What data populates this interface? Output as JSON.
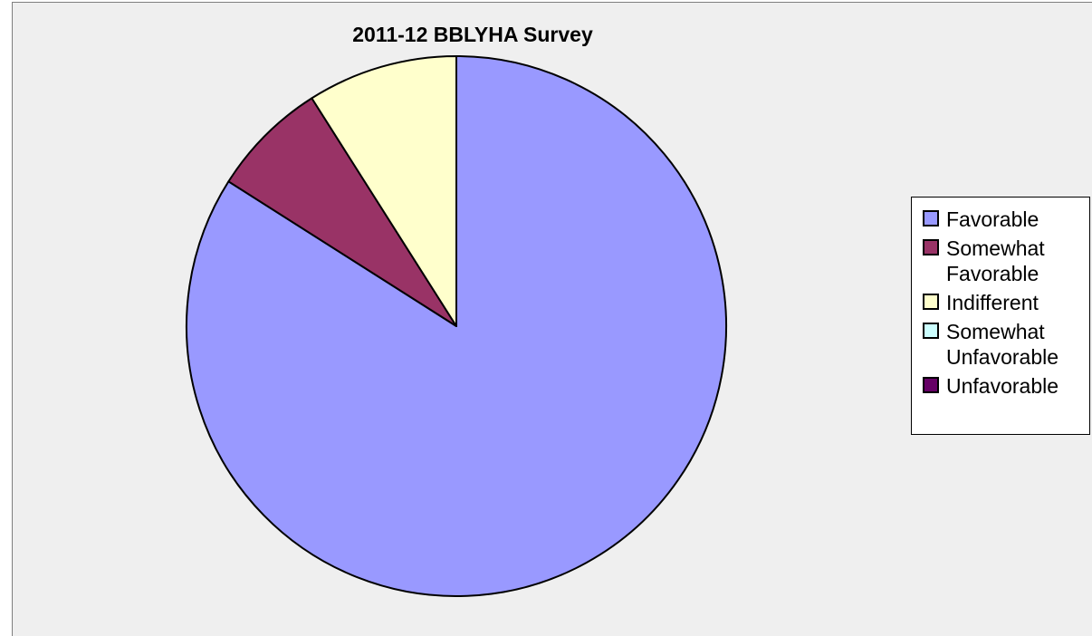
{
  "chart_data": {
    "type": "pie",
    "title": "2011-12 BBLYHA Survey",
    "categories": [
      "Favorable",
      "Somewhat Favorable",
      "Indifferent",
      "Somewhat Unfavorable",
      "Unfavorable"
    ],
    "values": [
      84,
      7,
      9,
      0,
      0
    ],
    "colors": [
      "#9999ff",
      "#993366",
      "#ffffcc",
      "#ccffff",
      "#660066"
    ],
    "start_angle_deg": 0,
    "direction": "clockwise",
    "legend_position": "right"
  }
}
